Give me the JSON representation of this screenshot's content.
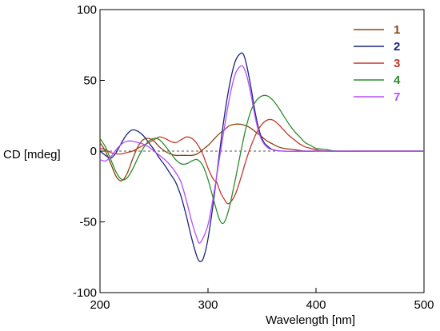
{
  "chart_data": {
    "type": "line",
    "xlabel": "Wavelength [nm]",
    "ylabel": "CD [mdeg]",
    "xlim": [
      200,
      500
    ],
    "ylim": [
      -100,
      100
    ],
    "x_ticks": [
      200,
      300,
      400,
      500
    ],
    "y_ticks": [
      100,
      50,
      0,
      -50,
      -100
    ],
    "zero_line": "dashed",
    "legend_position": "top-right",
    "series": [
      {
        "name": "1",
        "color": "#8b4513",
        "points": [
          [
            200,
            6
          ],
          [
            205,
            0
          ],
          [
            210,
            -9
          ],
          [
            215,
            -18
          ],
          [
            220,
            -21
          ],
          [
            225,
            -16
          ],
          [
            230,
            -6
          ],
          [
            235,
            3
          ],
          [
            240,
            8
          ],
          [
            245,
            9
          ],
          [
            250,
            7
          ],
          [
            255,
            3
          ],
          [
            260,
            0
          ],
          [
            265,
            -2
          ],
          [
            270,
            -3
          ],
          [
            275,
            -3
          ],
          [
            280,
            -3
          ],
          [
            285,
            -3
          ],
          [
            290,
            -2
          ],
          [
            295,
            1
          ],
          [
            300,
            4
          ],
          [
            305,
            8
          ],
          [
            310,
            12
          ],
          [
            315,
            15
          ],
          [
            320,
            18
          ],
          [
            325,
            19
          ],
          [
            330,
            19
          ],
          [
            335,
            18
          ],
          [
            340,
            16
          ],
          [
            345,
            13
          ],
          [
            350,
            10
          ],
          [
            355,
            7
          ],
          [
            360,
            5
          ],
          [
            365,
            3
          ],
          [
            370,
            2
          ],
          [
            380,
            1
          ],
          [
            390,
            0
          ],
          [
            400,
            0
          ],
          [
            450,
            0
          ],
          [
            500,
            0
          ]
        ]
      },
      {
        "name": "2",
        "color": "#1a237e",
        "points": [
          [
            200,
            0
          ],
          [
            205,
            -3
          ],
          [
            210,
            -5
          ],
          [
            215,
            -1
          ],
          [
            220,
            6
          ],
          [
            225,
            12
          ],
          [
            230,
            15
          ],
          [
            235,
            14
          ],
          [
            240,
            11
          ],
          [
            245,
            6
          ],
          [
            250,
            1
          ],
          [
            255,
            -5
          ],
          [
            260,
            -10
          ],
          [
            265,
            -16
          ],
          [
            270,
            -22
          ],
          [
            275,
            -32
          ],
          [
            280,
            -46
          ],
          [
            285,
            -62
          ],
          [
            290,
            -75
          ],
          [
            293,
            -78
          ],
          [
            296,
            -75
          ],
          [
            300,
            -62
          ],
          [
            305,
            -36
          ],
          [
            310,
            -5
          ],
          [
            315,
            24
          ],
          [
            320,
            47
          ],
          [
            325,
            63
          ],
          [
            330,
            69
          ],
          [
            333,
            68
          ],
          [
            336,
            60
          ],
          [
            340,
            44
          ],
          [
            344,
            26
          ],
          [
            348,
            13
          ],
          [
            352,
            6
          ],
          [
            356,
            3
          ],
          [
            360,
            1
          ],
          [
            370,
            0
          ],
          [
            400,
            0
          ],
          [
            450,
            0
          ],
          [
            500,
            0
          ]
        ]
      },
      {
        "name": "3",
        "color": "#c0392b",
        "points": [
          [
            200,
            2
          ],
          [
            205,
            1
          ],
          [
            210,
            -1
          ],
          [
            215,
            -2
          ],
          [
            220,
            -2
          ],
          [
            225,
            -1
          ],
          [
            230,
            0
          ],
          [
            235,
            2
          ],
          [
            240,
            4
          ],
          [
            245,
            6
          ],
          [
            250,
            8
          ],
          [
            255,
            10
          ],
          [
            260,
            9
          ],
          [
            265,
            7
          ],
          [
            270,
            6
          ],
          [
            275,
            8
          ],
          [
            280,
            10
          ],
          [
            285,
            9
          ],
          [
            290,
            5
          ],
          [
            295,
            -2
          ],
          [
            300,
            -12
          ],
          [
            305,
            -20
          ],
          [
            308,
            -22
          ],
          [
            310,
            -26
          ],
          [
            312,
            -30
          ],
          [
            315,
            -34
          ],
          [
            318,
            -37
          ],
          [
            321,
            -36
          ],
          [
            325,
            -31
          ],
          [
            330,
            -20
          ],
          [
            335,
            -7
          ],
          [
            340,
            4
          ],
          [
            345,
            13
          ],
          [
            350,
            19
          ],
          [
            355,
            22
          ],
          [
            360,
            22
          ],
          [
            365,
            19
          ],
          [
            370,
            15
          ],
          [
            375,
            11
          ],
          [
            380,
            8
          ],
          [
            385,
            5
          ],
          [
            390,
            3
          ],
          [
            395,
            2
          ],
          [
            400,
            1
          ],
          [
            410,
            0
          ],
          [
            450,
            0
          ],
          [
            500,
            0
          ]
        ]
      },
      {
        "name": "4",
        "color": "#2e8b2e",
        "points": [
          [
            200,
            9
          ],
          [
            205,
            3
          ],
          [
            210,
            -6
          ],
          [
            215,
            -15
          ],
          [
            220,
            -20
          ],
          [
            225,
            -19
          ],
          [
            230,
            -13
          ],
          [
            235,
            -5
          ],
          [
            240,
            2
          ],
          [
            245,
            7
          ],
          [
            250,
            9
          ],
          [
            255,
            8
          ],
          [
            260,
            4
          ],
          [
            265,
            -1
          ],
          [
            270,
            -6
          ],
          [
            275,
            -9
          ],
          [
            280,
            -9
          ],
          [
            285,
            -7
          ],
          [
            290,
            -6
          ],
          [
            295,
            -10
          ],
          [
            300,
            -20
          ],
          [
            305,
            -34
          ],
          [
            310,
            -47
          ],
          [
            313,
            -51
          ],
          [
            316,
            -49
          ],
          [
            320,
            -39
          ],
          [
            325,
            -21
          ],
          [
            330,
            -2
          ],
          [
            335,
            16
          ],
          [
            340,
            29
          ],
          [
            345,
            36
          ],
          [
            350,
            39
          ],
          [
            355,
            39
          ],
          [
            360,
            36
          ],
          [
            365,
            31
          ],
          [
            370,
            25
          ],
          [
            375,
            19
          ],
          [
            380,
            14
          ],
          [
            385,
            10
          ],
          [
            390,
            6
          ],
          [
            395,
            4
          ],
          [
            400,
            2
          ],
          [
            410,
            1
          ],
          [
            420,
            0
          ],
          [
            450,
            0
          ],
          [
            500,
            0
          ]
        ]
      },
      {
        "name": "7",
        "color": "#b44cff",
        "points": [
          [
            200,
            -6
          ],
          [
            205,
            -7
          ],
          [
            210,
            -4
          ],
          [
            215,
            1
          ],
          [
            220,
            5
          ],
          [
            225,
            7
          ],
          [
            230,
            7
          ],
          [
            235,
            6
          ],
          [
            240,
            5
          ],
          [
            245,
            3
          ],
          [
            250,
            0
          ],
          [
            255,
            -3
          ],
          [
            260,
            -6
          ],
          [
            265,
            -10
          ],
          [
            270,
            -15
          ],
          [
            275,
            -22
          ],
          [
            280,
            -35
          ],
          [
            285,
            -50
          ],
          [
            290,
            -62
          ],
          [
            292,
            -65
          ],
          [
            295,
            -62
          ],
          [
            300,
            -52
          ],
          [
            305,
            -32
          ],
          [
            310,
            -8
          ],
          [
            315,
            16
          ],
          [
            320,
            38
          ],
          [
            325,
            54
          ],
          [
            330,
            60
          ],
          [
            333,
            59
          ],
          [
            336,
            53
          ],
          [
            340,
            39
          ],
          [
            344,
            23
          ],
          [
            348,
            11
          ],
          [
            352,
            5
          ],
          [
            356,
            2
          ],
          [
            360,
            1
          ],
          [
            370,
            0
          ],
          [
            400,
            0
          ],
          [
            450,
            0
          ],
          [
            500,
            0
          ]
        ]
      }
    ]
  }
}
